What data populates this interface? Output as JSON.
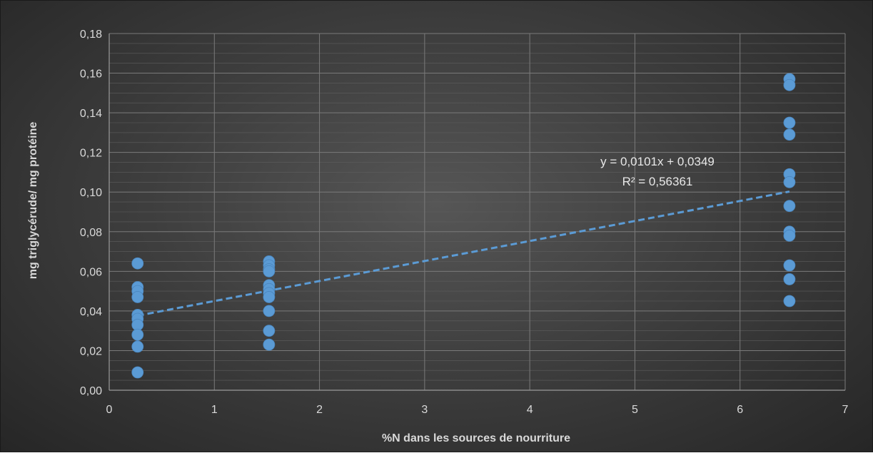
{
  "chart_data": {
    "type": "scatter",
    "title": "",
    "xlabel": "%N dans les sources de nourriture",
    "ylabel": "mg triglycérude/ mg protéine",
    "xlim": [
      0,
      7
    ],
    "ylim": [
      0,
      0.18
    ],
    "xticks": [
      0,
      1,
      2,
      3,
      4,
      5,
      6,
      7
    ],
    "xtick_labels": [
      "0",
      "1",
      "2",
      "3",
      "4",
      "5",
      "6",
      "7"
    ],
    "yticks": [
      0,
      0.02,
      0.04,
      0.06,
      0.08,
      0.1,
      0.12,
      0.14,
      0.16,
      0.18
    ],
    "ytick_labels": [
      "0,00",
      "0,02",
      "0,04",
      "0,06",
      "0,08",
      "0,10",
      "0,12",
      "0,14",
      "0,16",
      "0,18"
    ],
    "grid": true,
    "minor_grid": true,
    "legend": "none",
    "marker_color": "#5b9bd5",
    "background_color": "#404040",
    "series": [
      {
        "points": [
          [
            0.27,
            0.064
          ],
          [
            0.27,
            0.052
          ],
          [
            0.27,
            0.05
          ],
          [
            0.27,
            0.047
          ],
          [
            0.27,
            0.038
          ],
          [
            0.27,
            0.036
          ],
          [
            0.27,
            0.033
          ],
          [
            0.27,
            0.028
          ],
          [
            0.27,
            0.022
          ],
          [
            0.27,
            0.009
          ],
          [
            1.52,
            0.065
          ],
          [
            1.52,
            0.063
          ],
          [
            1.52,
            0.061
          ],
          [
            1.52,
            0.06
          ],
          [
            1.52,
            0.053
          ],
          [
            1.52,
            0.051
          ],
          [
            1.52,
            0.049
          ],
          [
            1.52,
            0.047
          ],
          [
            1.52,
            0.04
          ],
          [
            1.52,
            0.03
          ],
          [
            1.52,
            0.023
          ],
          [
            6.47,
            0.157
          ],
          [
            6.47,
            0.154
          ],
          [
            6.47,
            0.135
          ],
          [
            6.47,
            0.129
          ],
          [
            6.47,
            0.109
          ],
          [
            6.47,
            0.105
          ],
          [
            6.47,
            0.093
          ],
          [
            6.47,
            0.08
          ],
          [
            6.47,
            0.078
          ],
          [
            6.47,
            0.063
          ],
          [
            6.47,
            0.056
          ],
          [
            6.47,
            0.045
          ]
        ]
      }
    ],
    "trendline": {
      "type": "linear",
      "slope": 0.0101,
      "intercept": 0.0349,
      "x_range": [
        0.27,
        6.47
      ],
      "style": "dashed",
      "color": "#5b9bd5"
    },
    "annotations": {
      "equation": "y = 0,0101x + 0,0349",
      "r_squared": "R² = 0,56361"
    }
  }
}
